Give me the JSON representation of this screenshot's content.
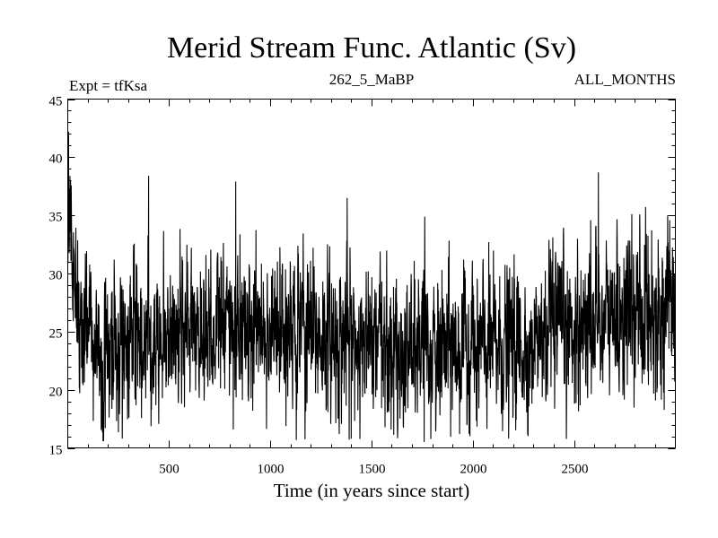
{
  "chart_data": {
    "type": "line",
    "title": "Merid Stream Func. Atlantic (Sv)",
    "subtitle_left": "Expt = tfKsa",
    "subtitle_center": "262_5_MaBP",
    "subtitle_right": "ALL_MONTHS",
    "xlabel": "Time (in years since start)",
    "ylabel": "",
    "xlim": [
      1,
      3000
    ],
    "ylim": [
      15,
      45
    ],
    "x_ticks": [
      500,
      1000,
      1500,
      2000,
      2500
    ],
    "y_ticks": [
      15,
      20,
      25,
      30,
      35,
      40,
      45
    ],
    "grid": false,
    "series": [
      {
        "name": "Merid Stream Func. Atlantic",
        "color": "#000000",
        "n_points": 3000,
        "x_start": 1,
        "x_step": 1,
        "mean_profile": [
          [
            1,
            33.5
          ],
          [
            30,
            29
          ],
          [
            80,
            25
          ],
          [
            150,
            22.5
          ],
          [
            200,
            23
          ],
          [
            300,
            24.5
          ],
          [
            500,
            25
          ],
          [
            800,
            25.5
          ],
          [
            1000,
            25
          ],
          [
            1300,
            24.5
          ],
          [
            1600,
            23.5
          ],
          [
            2000,
            23.5
          ],
          [
            2300,
            24
          ],
          [
            2600,
            26
          ],
          [
            3000,
            27
          ]
        ],
        "noise_sd": 3.2,
        "min": 15.5,
        "max": 42.2,
        "notable_values": [
          {
            "x": 5,
            "y": 42.2
          },
          {
            "x": 15,
            "y": 38
          },
          {
            "x": 400,
            "y": 38.4
          },
          {
            "x": 830,
            "y": 37.9
          },
          {
            "x": 1380,
            "y": 36.5
          },
          {
            "x": 2620,
            "y": 38.7
          },
          {
            "x": 1760,
            "y": 15.5
          },
          {
            "x": 1390,
            "y": 15.7
          },
          {
            "x": 270,
            "y": 15.8
          }
        ]
      }
    ]
  }
}
